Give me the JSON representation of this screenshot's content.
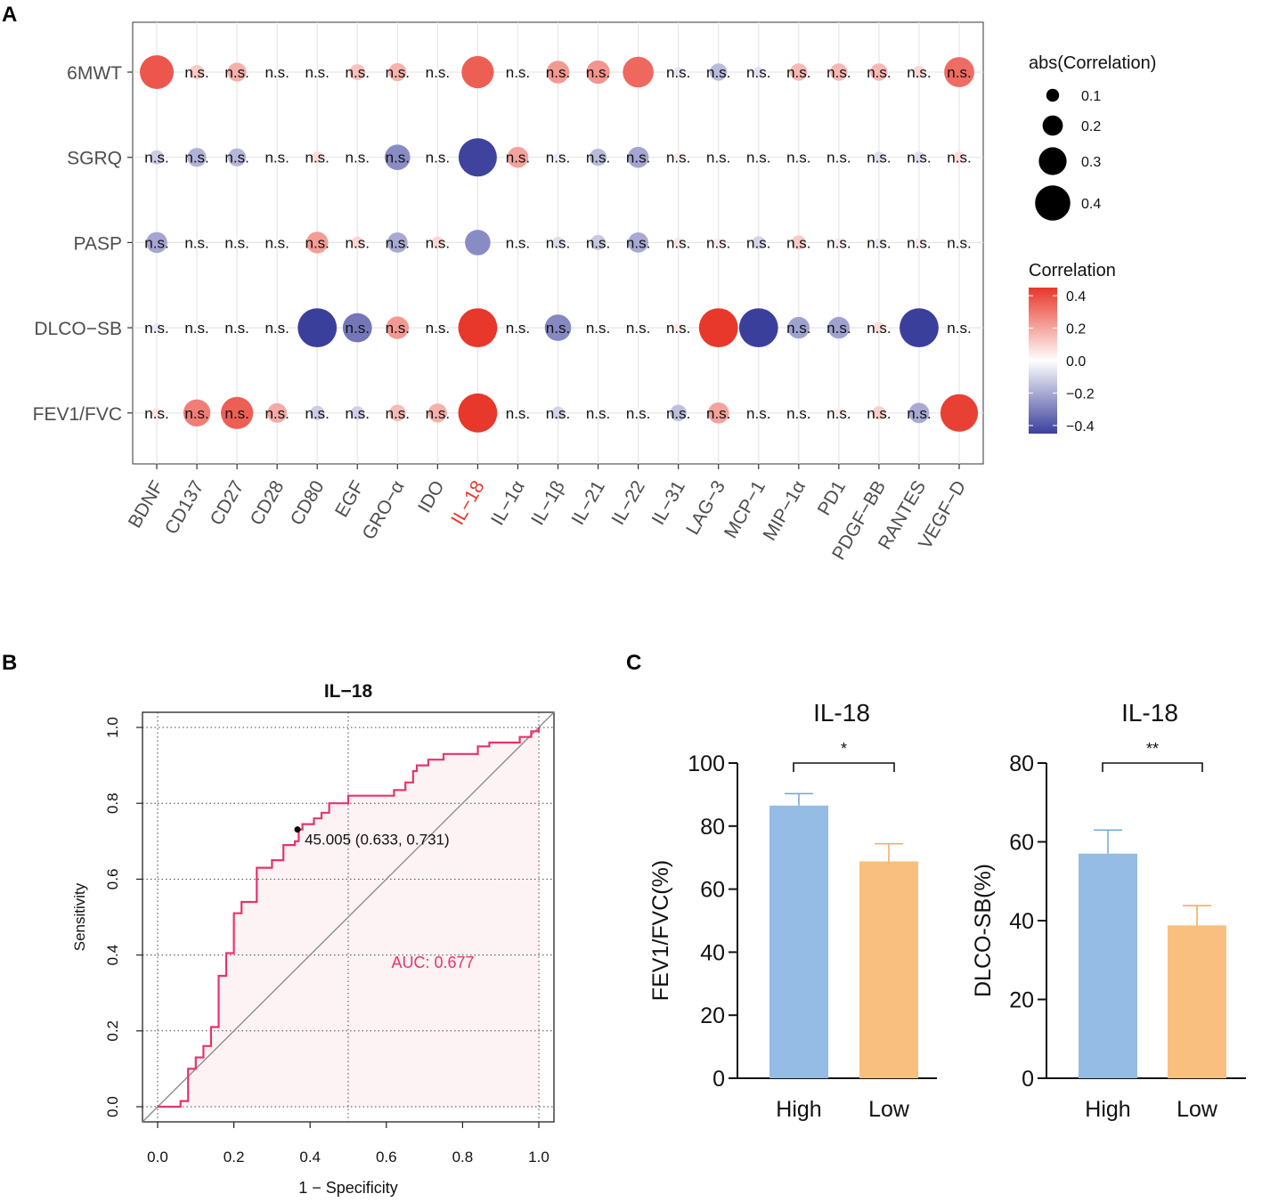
{
  "panel_labels": {
    "a": "A",
    "b": "B",
    "c": "C"
  },
  "colors": {
    "positive": "#e8372b",
    "neutral": "#ffffff",
    "negative": "#3b3f9c",
    "roc_line": "#e8336b",
    "auc_text": "#e8336b",
    "roc_fill": "#fdf3f5",
    "high_bar": "#94bce4",
    "low_bar": "#f9bf7e",
    "highlight_label": "#e8372b"
  },
  "chart_data": [
    {
      "id": "panel-a",
      "type": "scatter",
      "subtype": "bubble-correlation",
      "rows": [
        "6MWT",
        "SGRQ",
        "PASP",
        "DLCO−SB",
        "FEV1/FVC"
      ],
      "columns": [
        "BDNF",
        "CD137",
        "CD27",
        "CD28",
        "CD80",
        "EGF",
        "GRO−α",
        "IDO",
        "IL−18",
        "IL−1α",
        "IL−1β",
        "IL−21",
        "IL−22",
        "IL−31",
        "LAG−3",
        "MCP−1",
        "MIP−1α",
        "PD1",
        "PDGF−BB",
        "RANTES",
        "VEGF−D"
      ],
      "highlight_column": "IL−18",
      "correlation": [
        [
          0.38,
          0.12,
          0.18,
          0.0,
          0.0,
          0.14,
          0.17,
          0.0,
          0.36,
          0.0,
          0.23,
          0.24,
          0.34,
          -0.06,
          -0.16,
          -0.07,
          0.16,
          0.16,
          0.16,
          0.09,
          0.33
        ],
        [
          -0.12,
          -0.18,
          -0.17,
          0.03,
          0.08,
          0.02,
          -0.27,
          0.0,
          -0.44,
          0.21,
          -0.05,
          -0.16,
          -0.21,
          0.05,
          0.02,
          0.02,
          0.02,
          0.02,
          -0.08,
          -0.08,
          0.08
        ],
        [
          -0.21,
          0.02,
          0.02,
          0.02,
          0.22,
          0.09,
          -0.2,
          0.09,
          -0.27,
          0.02,
          -0.08,
          -0.13,
          -0.2,
          0.06,
          0.05,
          -0.1,
          0.12,
          0.05,
          -0.05,
          0.05,
          0.02
        ],
        [
          -0.05,
          0.02,
          0.02,
          0.02,
          -0.45,
          -0.32,
          0.23,
          0.02,
          0.45,
          0.02,
          -0.28,
          0.02,
          0.02,
          0.05,
          0.45,
          -0.45,
          -0.22,
          -0.22,
          0.08,
          -0.45,
          0.02
        ],
        [
          0.06,
          0.29,
          0.36,
          0.19,
          -0.12,
          -0.11,
          0.15,
          0.18,
          0.45,
          0.02,
          -0.1,
          0.02,
          0.02,
          -0.15,
          0.21,
          0.02,
          0.02,
          0.05,
          0.11,
          -0.2,
          0.43
        ]
      ],
      "significance": [
        [
          "",
          "n.s.",
          "n.s.",
          "n.s.",
          "n.s.",
          "n.s.",
          "n.s.",
          "n.s.",
          "",
          "n.s.",
          "n.s.",
          "n.s.",
          "",
          "n.s.",
          "n.s.",
          "n.s.",
          "n.s.",
          "n.s.",
          "n.s.",
          "n.s.",
          "n.s."
        ],
        [
          "n.s.",
          "n.s.",
          "n.s.",
          "n.s.",
          "n.s.",
          "n.s.",
          "n.s.",
          "n.s.",
          "",
          "n.s.",
          "n.s.",
          "n.s.",
          "n.s.",
          "n.s.",
          "n.s.",
          "n.s.",
          "n.s.",
          "n.s.",
          "n.s.",
          "n.s.",
          "n.s."
        ],
        [
          "n.s.",
          "n.s.",
          "n.s.",
          "n.s.",
          "n.s.",
          "n.s.",
          "n.s.",
          "n.s.",
          "",
          "n.s.",
          "n.s.",
          "n.s.",
          "n.s.",
          "n.s.",
          "n.s.",
          "n.s.",
          "n.s.",
          "n.s.",
          "n.s.",
          "n.s.",
          "n.s."
        ],
        [
          "n.s.",
          "n.s.",
          "n.s.",
          "n.s.",
          "",
          "n.s.",
          "n.s.",
          "n.s.",
          "",
          "n.s.",
          "n.s.",
          "n.s.",
          "n.s.",
          "n.s.",
          "",
          "",
          "n.s.",
          "n.s.",
          "n.s.",
          "",
          "n.s."
        ],
        [
          "n.s.",
          "n.s.",
          "n.s.",
          "n.s.",
          "n.s.",
          "n.s.",
          "n.s.",
          "n.s.",
          "",
          "n.s.",
          "n.s.",
          "n.s.",
          "n.s.",
          "n.s.",
          "n.s.",
          "n.s.",
          "n.s.",
          "n.s.",
          "n.s.",
          "n.s.",
          ""
        ]
      ],
      "size_legend": {
        "title": "abs(Correlation)",
        "values": [
          0.1,
          0.2,
          0.3,
          0.4
        ],
        "labels": [
          "0.1",
          "0.2",
          "0.3",
          "0.4"
        ]
      },
      "color_legend": {
        "title": "Correlation",
        "range": [
          -0.45,
          0.45
        ],
        "ticks": [
          0.4,
          0.2,
          0.0,
          -0.2,
          -0.4
        ],
        "labels": [
          "0.4",
          "0.2",
          "0.0",
          "−0.2",
          "−0.4"
        ]
      }
    },
    {
      "id": "panel-b",
      "type": "line",
      "subtype": "roc",
      "title": "IL−18",
      "xlabel": "1 − Specificity",
      "ylabel": "Sensitivity",
      "xlim": [
        0,
        1
      ],
      "ylim": [
        0,
        1
      ],
      "xticks": [
        "0.0",
        "0.2",
        "0.4",
        "0.6",
        "0.8",
        "1.0"
      ],
      "yticks": [
        "0.0",
        "0.2",
        "0.4",
        "0.6",
        "0.8",
        "1.0"
      ],
      "grid_reference": [
        0.5
      ],
      "roc_points": [
        [
          0,
          0
        ],
        [
          0.06,
          0
        ],
        [
          0.06,
          0.015
        ],
        [
          0.08,
          0.015
        ],
        [
          0.08,
          0.1
        ],
        [
          0.1,
          0.1
        ],
        [
          0.1,
          0.13
        ],
        [
          0.12,
          0.13
        ],
        [
          0.12,
          0.16
        ],
        [
          0.14,
          0.16
        ],
        [
          0.14,
          0.21
        ],
        [
          0.16,
          0.21
        ],
        [
          0.16,
          0.345
        ],
        [
          0.18,
          0.345
        ],
        [
          0.18,
          0.405
        ],
        [
          0.2,
          0.405
        ],
        [
          0.2,
          0.51
        ],
        [
          0.22,
          0.51
        ],
        [
          0.22,
          0.54
        ],
        [
          0.26,
          0.54
        ],
        [
          0.26,
          0.63
        ],
        [
          0.3,
          0.63
        ],
        [
          0.3,
          0.65
        ],
        [
          0.33,
          0.65
        ],
        [
          0.33,
          0.69
        ],
        [
          0.36,
          0.69
        ],
        [
          0.36,
          0.7
        ],
        [
          0.37,
          0.7
        ],
        [
          0.37,
          0.731
        ],
        [
          0.38,
          0.731
        ],
        [
          0.38,
          0.745
        ],
        [
          0.41,
          0.745
        ],
        [
          0.41,
          0.76
        ],
        [
          0.43,
          0.76
        ],
        [
          0.43,
          0.775
        ],
        [
          0.45,
          0.775
        ],
        [
          0.45,
          0.8
        ],
        [
          0.5,
          0.8
        ],
        [
          0.5,
          0.82
        ],
        [
          0.62,
          0.82
        ],
        [
          0.62,
          0.835
        ],
        [
          0.65,
          0.835
        ],
        [
          0.65,
          0.855
        ],
        [
          0.67,
          0.855
        ],
        [
          0.67,
          0.885
        ],
        [
          0.68,
          0.885
        ],
        [
          0.68,
          0.9
        ],
        [
          0.71,
          0.9
        ],
        [
          0.71,
          0.915
        ],
        [
          0.75,
          0.915
        ],
        [
          0.75,
          0.93
        ],
        [
          0.84,
          0.93
        ],
        [
          0.84,
          0.95
        ],
        [
          0.87,
          0.95
        ],
        [
          0.87,
          0.96
        ],
        [
          0.95,
          0.96
        ],
        [
          0.95,
          0.975
        ],
        [
          0.98,
          0.975
        ],
        [
          0.98,
          0.99
        ],
        [
          1,
          0.99
        ],
        [
          1,
          1
        ]
      ],
      "cutoff_point": {
        "x": 0.367,
        "y": 0.731,
        "label": "45.005 (0.633, 0.731)"
      },
      "auc_label": "AUC: 0.677"
    },
    {
      "id": "panel-c-left",
      "type": "bar",
      "title": "IL-18",
      "ylabel": "FEV1/FVC(%)",
      "categories": [
        "High",
        "Low"
      ],
      "values": [
        86.5,
        68.8
      ],
      "errors": [
        3.8,
        5.6
      ],
      "ylim": [
        0,
        100
      ],
      "yticks": [
        "0",
        "20",
        "40",
        "60",
        "80",
        "100"
      ],
      "significance": "*"
    },
    {
      "id": "panel-c-right",
      "type": "bar",
      "title": "IL-18",
      "ylabel": "DLCO-SB(%)",
      "categories": [
        "High",
        "Low"
      ],
      "values": [
        57.0,
        38.8
      ],
      "errors": [
        6.0,
        5.0
      ],
      "ylim": [
        0,
        80
      ],
      "yticks": [
        "0",
        "20",
        "40",
        "60",
        "80"
      ],
      "significance": "**"
    }
  ]
}
